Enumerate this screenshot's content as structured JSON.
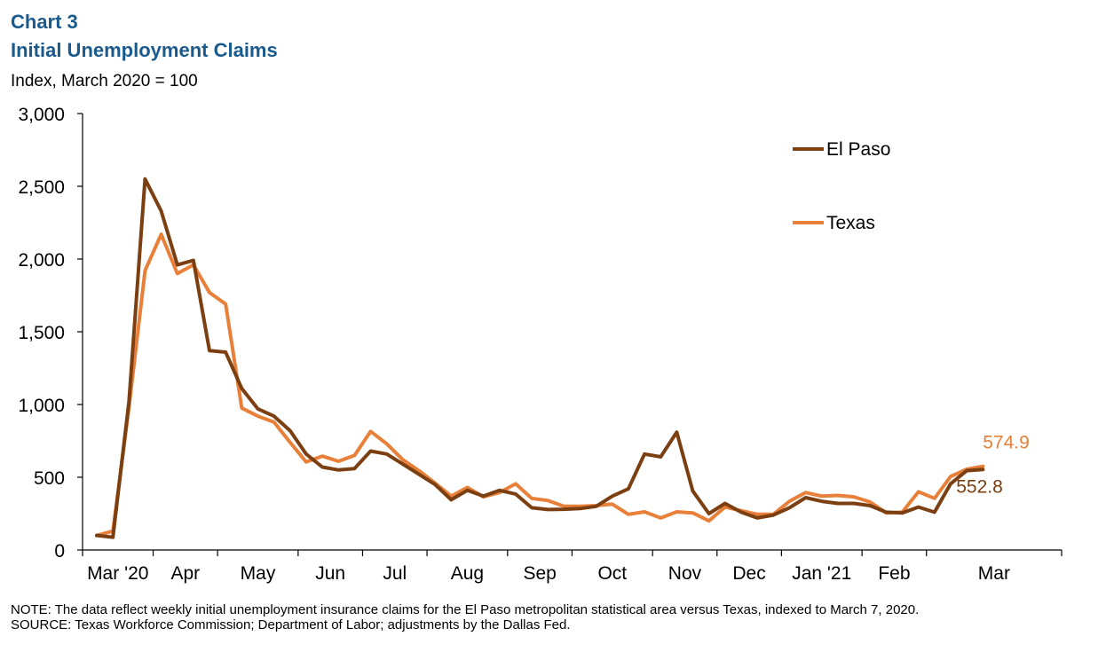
{
  "header": {
    "chart_number": "Chart 3",
    "title": "Initial Unemployment  Claims",
    "subtitle": "Index, March 2020 = 100"
  },
  "footer": {
    "note": "NOTE:  The data  reflect  weekly  initial  unemployment  insurance  claims  for the El Paso  metropolitan  statistical  area versus  Texas,  indexed to March 7, 2020.",
    "source": "SOURCE:  Texas  Workforce Commission;  Department  of  Labor;  adjustments  by the Dallas Fed."
  },
  "chart_data": {
    "type": "line",
    "title": "Initial Unemployment  Claims",
    "subtitle": "Index, March 2020 = 100",
    "xlabel": "",
    "ylabel": "",
    "ylim": [
      0,
      3000
    ],
    "yticks": [
      0,
      500,
      1000,
      1500,
      2000,
      2500,
      3000
    ],
    "ytick_labels": [
      "0",
      "500",
      "1,000",
      "1,500",
      "2,000",
      "2,500",
      "3,000"
    ],
    "xtick_labels": [
      "Mar '20",
      "Apr",
      "May",
      "Jun",
      "Jul",
      "Aug",
      "Sep",
      "Oct",
      "Nov",
      "Dec",
      "Jan '21",
      "Feb",
      "Mar"
    ],
    "x": [
      "2020-03-07",
      "2020-03-14",
      "2020-03-21",
      "2020-03-28",
      "2020-04-04",
      "2020-04-11",
      "2020-04-18",
      "2020-04-25",
      "2020-05-02",
      "2020-05-09",
      "2020-05-16",
      "2020-05-23",
      "2020-05-30",
      "2020-06-06",
      "2020-06-13",
      "2020-06-20",
      "2020-06-27",
      "2020-07-04",
      "2020-07-11",
      "2020-07-18",
      "2020-07-25",
      "2020-08-01",
      "2020-08-08",
      "2020-08-15",
      "2020-08-22",
      "2020-08-29",
      "2020-09-05",
      "2020-09-12",
      "2020-09-19",
      "2020-09-26",
      "2020-10-03",
      "2020-10-10",
      "2020-10-17",
      "2020-10-24",
      "2020-10-31",
      "2020-11-07",
      "2020-11-14",
      "2020-11-21",
      "2020-11-28",
      "2020-12-05",
      "2020-12-12",
      "2020-12-19",
      "2020-12-26",
      "2021-01-02",
      "2021-01-09",
      "2021-01-16",
      "2021-01-23",
      "2021-01-30",
      "2021-02-06",
      "2021-02-13",
      "2021-02-20",
      "2021-02-27",
      "2021-03-06",
      "2021-03-13",
      "2021-03-20",
      "2021-03-27"
    ],
    "legend_position": "top-right",
    "grid": false,
    "series": [
      {
        "name": "El Paso",
        "color": "#7b3f12",
        "end_label": "552.8",
        "values": [
          100,
          88,
          1020,
          2550,
          2330,
          1960,
          1990,
          1370,
          1360,
          1110,
          970,
          920,
          820,
          660,
          570,
          550,
          560,
          680,
          660,
          590,
          520,
          450,
          345,
          410,
          370,
          410,
          385,
          290,
          278,
          280,
          285,
          300,
          370,
          420,
          660,
          640,
          810,
          405,
          250,
          320,
          260,
          220,
          240,
          290,
          360,
          335,
          320,
          320,
          305,
          260,
          255,
          295,
          260,
          455,
          545,
          552.8
        ]
      },
      {
        "name": "Texas",
        "color": "#e8803a",
        "end_label": "574.9",
        "values": [
          100,
          130,
          980,
          1920,
          2170,
          1900,
          1960,
          1770,
          1690,
          975,
          920,
          880,
          740,
          605,
          645,
          610,
          650,
          815,
          730,
          620,
          545,
          460,
          370,
          430,
          365,
          395,
          455,
          355,
          340,
          300,
          300,
          305,
          315,
          245,
          262,
          220,
          262,
          255,
          200,
          295,
          270,
          245,
          245,
          335,
          395,
          370,
          375,
          365,
          330,
          255,
          260,
          400,
          355,
          505,
          555,
          574.9
        ]
      }
    ]
  }
}
